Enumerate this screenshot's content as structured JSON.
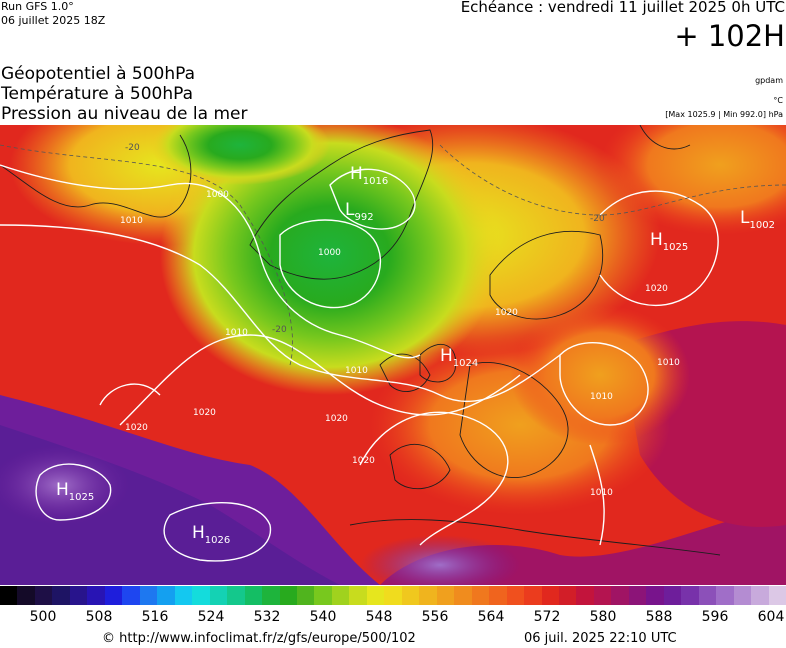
{
  "header": {
    "run": "Run GFS 1.0°",
    "run_date": "06 juillet 2025 18Z",
    "echeance": "Echéance : vendredi 11 juillet 2025 0h UTC",
    "lead": "+ 102H",
    "title_lines": [
      "Géopotentiel à 500hPa",
      "Température à 500hPa",
      "Pression au niveau de la mer"
    ],
    "unit_gpdam": "gpdam",
    "unit_celsius": "°C",
    "pressure_range": "[Max 1025.9 | Min 992.0] hPa"
  },
  "map": {
    "pressure_centers": [
      {
        "type": "H",
        "value": "1016"
      },
      {
        "type": "L",
        "value": "992"
      },
      {
        "type": "H",
        "value": "1025"
      },
      {
        "type": "L",
        "value": "1002"
      },
      {
        "type": "H",
        "value": "1024"
      },
      {
        "type": "H",
        "value": "1025"
      },
      {
        "type": "H",
        "value": "1026"
      }
    ],
    "isobar_labels": [
      "1000",
      "1010",
      "1020",
      "1010",
      "1020",
      "1020",
      "1010",
      "1020",
      "1020",
      "1010",
      "1020",
      "1010"
    ],
    "isotherm_labels": [
      "-20",
      "-20",
      "-20"
    ]
  },
  "colorbar": {
    "colors": [
      "#000000",
      "#140a28",
      "#1e0f46",
      "#1e1464",
      "#28148c",
      "#2814b4",
      "#1e1edc",
      "#1e46f0",
      "#1e78f0",
      "#14a0f0",
      "#14c8f0",
      "#14dcdc",
      "#14d2b4",
      "#14c88c",
      "#14be64",
      "#1eb43c",
      "#28aa1e",
      "#50b41e",
      "#78c81e",
      "#a0d21e",
      "#c8dc1e",
      "#e6e61e",
      "#f0dc1e",
      "#f0c81e",
      "#f0b41e",
      "#f0a01e",
      "#f08c1e",
      "#f0781e",
      "#f0641e",
      "#f0501e",
      "#eb3c1e",
      "#e1281e",
      "#d21e28",
      "#c3143c",
      "#b41450",
      "#a01464",
      "#8c1478",
      "#78148c",
      "#6e1e9b",
      "#7832aa",
      "#8c50b9",
      "#a06ec8",
      "#b48cd2",
      "#c8aadc",
      "#dcc8e6"
    ],
    "labels": [
      "500",
      "508",
      "516",
      "524",
      "532",
      "540",
      "548",
      "556",
      "564",
      "572",
      "580",
      "588",
      "596",
      "604"
    ]
  },
  "footer": {
    "url": "© http://www.infoclimat.fr/z/gfs/europe/500/102",
    "timestamp": "06 juil. 2025 22:10 UTC"
  }
}
